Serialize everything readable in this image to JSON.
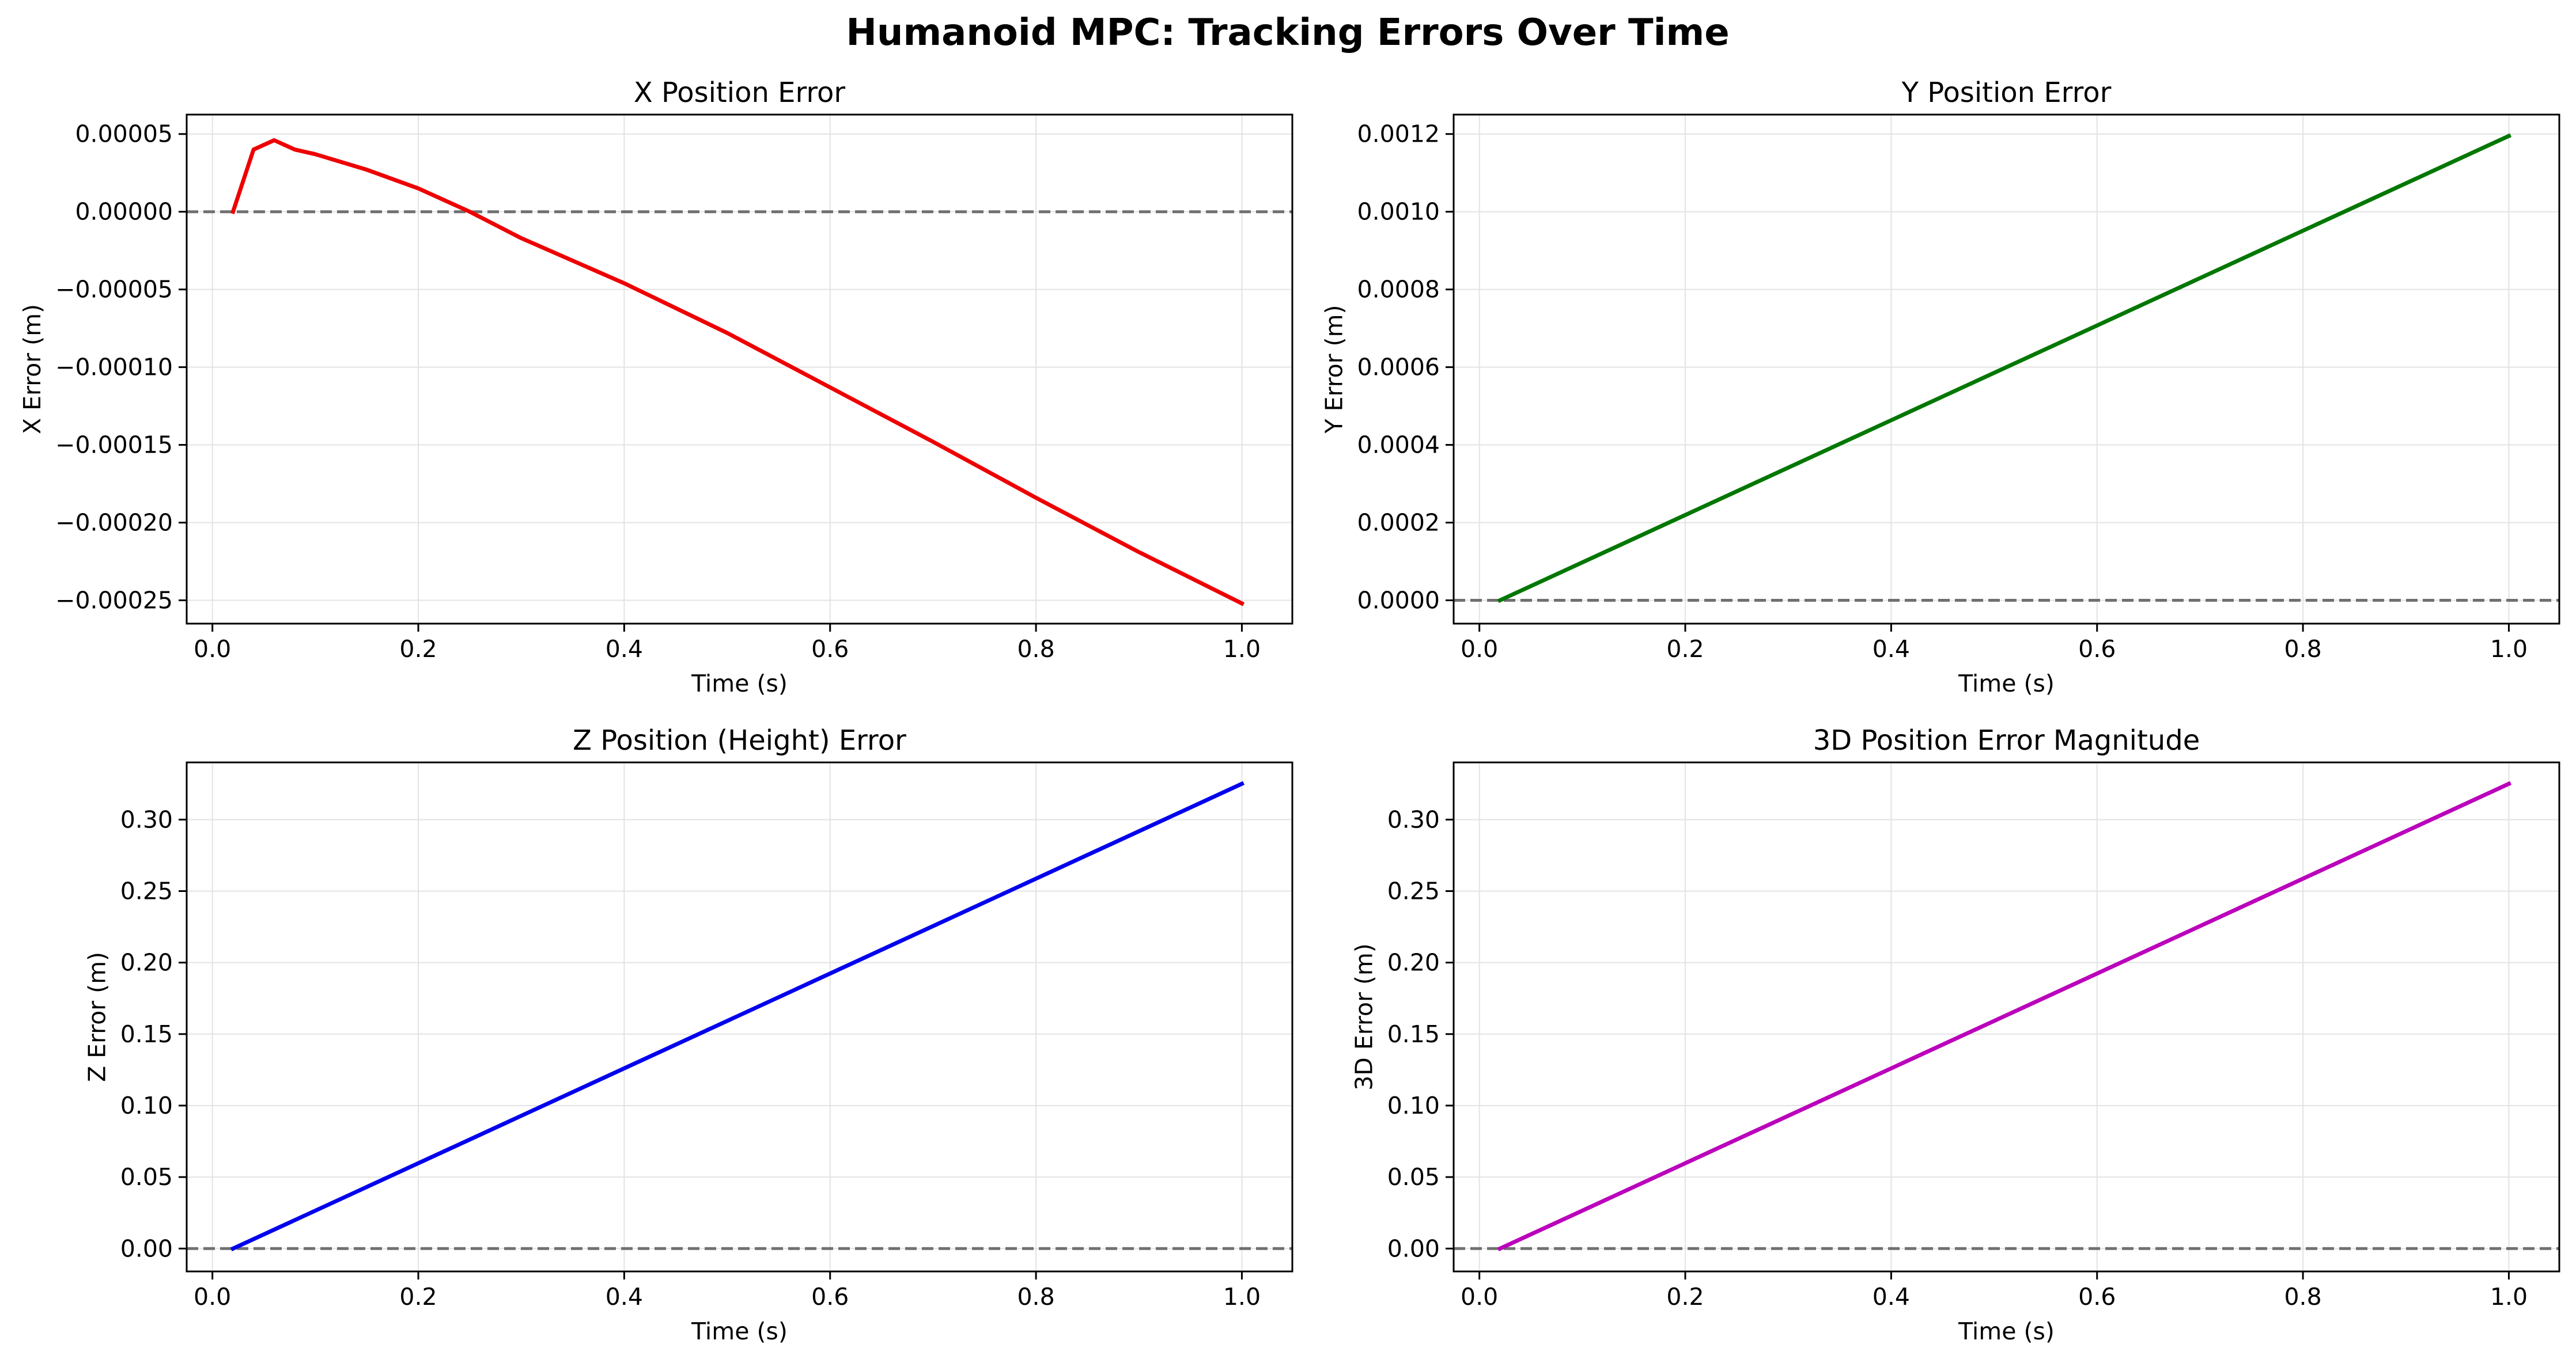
{
  "figure": {
    "title": "Humanoid MPC: Tracking Errors Over Time"
  },
  "chart_data": [
    {
      "type": "line",
      "title": "X Position Error",
      "xlabel": "Time (s)",
      "ylabel": "X Error (m)",
      "xlim": [
        -0.025,
        1.049
      ],
      "ylim": [
        -0.000265,
        6.25e-05
      ],
      "xticks": [
        0.0,
        0.2,
        0.4,
        0.6,
        0.8,
        1.0
      ],
      "xtick_labels": [
        "0.0",
        "0.2",
        "0.4",
        "0.6",
        "0.8",
        "1.0"
      ],
      "yticks": [
        5e-05,
        0.0,
        -5e-05,
        -0.0001,
        -0.00015,
        -0.0002,
        -0.00025
      ],
      "ytick_labels": [
        "0.00005",
        "0.00000",
        "−0.00005",
        "−0.00010",
        "−0.00015",
        "−0.00020",
        "−0.00025"
      ],
      "grid": true,
      "reference_line": 0,
      "series": [
        {
          "color": "#ee0000",
          "x": [
            0.02,
            0.04,
            0.06,
            0.08,
            0.1,
            0.15,
            0.2,
            0.25,
            0.3,
            0.4,
            0.5,
            0.6,
            0.7,
            0.8,
            0.9,
            1.0
          ],
          "y": [
            0.0,
            4e-05,
            4.6e-05,
            4e-05,
            3.7e-05,
            2.7e-05,
            1.5e-05,
            0.0,
            -1.7e-05,
            -4.6e-05,
            -7.8e-05,
            -0.000113,
            -0.000148,
            -0.000184,
            -0.000219,
            -0.000252
          ]
        }
      ]
    },
    {
      "type": "line",
      "title": "Y Position Error",
      "xlabel": "Time (s)",
      "ylabel": "Y Error (m)",
      "xlim": [
        -0.025,
        1.049
      ],
      "ylim": [
        -6e-05,
        0.00125
      ],
      "xticks": [
        0.0,
        0.2,
        0.4,
        0.6,
        0.8,
        1.0
      ],
      "xtick_labels": [
        "0.0",
        "0.2",
        "0.4",
        "0.6",
        "0.8",
        "1.0"
      ],
      "yticks": [
        0.0,
        0.0002,
        0.0004,
        0.0006,
        0.0008,
        0.001,
        0.0012
      ],
      "ytick_labels": [
        "0.0000",
        "0.0002",
        "0.0004",
        "0.0006",
        "0.0008",
        "0.0010",
        "0.0012"
      ],
      "grid": true,
      "reference_line": 0,
      "series": [
        {
          "color": "#007700",
          "x": [
            0.02,
            1.0
          ],
          "y": [
            0.0,
            0.001195
          ]
        }
      ]
    },
    {
      "type": "line",
      "title": "Z Position (Height) Error",
      "xlabel": "Time (s)",
      "ylabel": "Z Error (m)",
      "xlim": [
        -0.025,
        1.049
      ],
      "ylim": [
        -0.016,
        0.34
      ],
      "xticks": [
        0.0,
        0.2,
        0.4,
        0.6,
        0.8,
        1.0
      ],
      "xtick_labels": [
        "0.0",
        "0.2",
        "0.4",
        "0.6",
        "0.8",
        "1.0"
      ],
      "yticks": [
        0.0,
        0.05,
        0.1,
        0.15,
        0.2,
        0.25,
        0.3
      ],
      "ytick_labels": [
        "0.00",
        "0.05",
        "0.10",
        "0.15",
        "0.20",
        "0.25",
        "0.30"
      ],
      "grid": true,
      "reference_line": 0,
      "series": [
        {
          "color": "#0000ee",
          "x": [
            0.02,
            1.0
          ],
          "y": [
            0.0,
            0.325
          ]
        }
      ]
    },
    {
      "type": "line",
      "title": "3D Position Error Magnitude",
      "xlabel": "Time (s)",
      "ylabel": "3D Error (m)",
      "xlim": [
        -0.025,
        1.049
      ],
      "ylim": [
        -0.016,
        0.34
      ],
      "xticks": [
        0.0,
        0.2,
        0.4,
        0.6,
        0.8,
        1.0
      ],
      "xtick_labels": [
        "0.0",
        "0.2",
        "0.4",
        "0.6",
        "0.8",
        "1.0"
      ],
      "yticks": [
        0.0,
        0.05,
        0.1,
        0.15,
        0.2,
        0.25,
        0.3
      ],
      "ytick_labels": [
        "0.00",
        "0.05",
        "0.10",
        "0.15",
        "0.20",
        "0.25",
        "0.30"
      ],
      "grid": true,
      "reference_line": 0,
      "series": [
        {
          "color": "#bb00bb",
          "x": [
            0.02,
            1.0
          ],
          "y": [
            0.0,
            0.325
          ]
        }
      ]
    }
  ]
}
